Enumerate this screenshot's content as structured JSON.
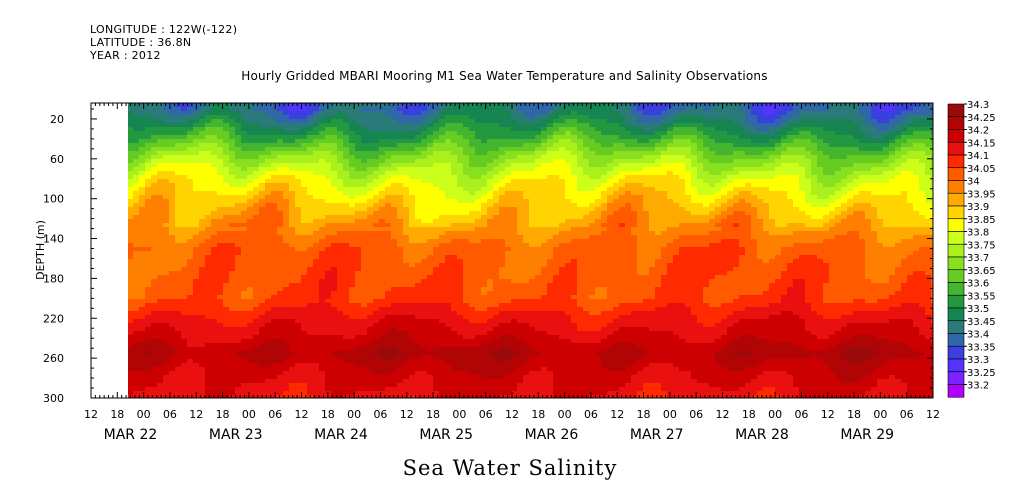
{
  "header": {
    "longitude": "LONGITUDE : 122W(-122)",
    "latitude": "LATITUDE : 36.8N",
    "year": "YEAR : 2012"
  },
  "chart_data": {
    "type": "heatmap",
    "title": "Hourly Gridded MBARI Mooring M1 Sea Water Temperature and Salinity Observations",
    "xlabel": "Sea Water Salinity",
    "ylabel": "DEPTH (m)",
    "y_ticks": [
      20,
      60,
      100,
      140,
      180,
      220,
      260,
      300
    ],
    "ylim": [
      300,
      4
    ],
    "x_hour_ticks": [
      "12",
      "18",
      "00",
      "06",
      "12",
      "18",
      "00",
      "06",
      "12",
      "18",
      "00",
      "06",
      "12",
      "18",
      "00",
      "06",
      "12",
      "18",
      "00",
      "06",
      "12",
      "18",
      "00",
      "06",
      "12",
      "18",
      "00",
      "06",
      "12",
      "18",
      "00",
      "06",
      "12"
    ],
    "x_date_labels": [
      "MAR 22",
      "MAR 23",
      "MAR 24",
      "MAR 25",
      "MAR 26",
      "MAR 27",
      "MAR 28",
      "MAR 29"
    ],
    "x_range": [
      "MAR 22 12:00",
      "MAR 29 12:00"
    ],
    "legend_placement": "right",
    "legend_levels": [
      "34.3",
      "34.25",
      "34.2",
      "34.15",
      "34.1",
      "34.05",
      "34",
      "33.95",
      "33.9",
      "33.85",
      "33.8",
      "33.75",
      "33.7",
      "33.65",
      "33.6",
      "33.55",
      "33.5",
      "33.45",
      "33.4",
      "33.35",
      "33.3",
      "33.25",
      "33.2"
    ],
    "legend_colors": [
      "#9b0a0a",
      "#b10505",
      "#cc0000",
      "#ea1010",
      "#ff2a00",
      "#ff5a00",
      "#ff8000",
      "#ffaa00",
      "#ffd400",
      "#ffff00",
      "#ccff1a",
      "#aaf01c",
      "#88e020",
      "#66cc22",
      "#44b52e",
      "#229940",
      "#168552",
      "#2a7a7a",
      "#3066aa",
      "#3a40dd",
      "#5533ff",
      "#7a22ff",
      "#b000ff"
    ],
    "profile": [
      {
        "depth": 10,
        "value": 33.45
      },
      {
        "depth": 20,
        "value": 33.5
      },
      {
        "depth": 40,
        "value": 33.62
      },
      {
        "depth": 60,
        "value": 33.75
      },
      {
        "depth": 80,
        "value": 33.85
      },
      {
        "depth": 100,
        "value": 33.92
      },
      {
        "depth": 120,
        "value": 33.98
      },
      {
        "depth": 150,
        "value": 34.07
      },
      {
        "depth": 200,
        "value": 34.1
      },
      {
        "depth": 220,
        "value": 34.17
      },
      {
        "depth": 240,
        "value": 34.22
      },
      {
        "depth": 255,
        "value": 34.27
      },
      {
        "depth": 275,
        "value": 34.22
      },
      {
        "depth": 300,
        "value": 34.18
      }
    ],
    "missing_data": "white region from MAR 22 12:00 to MAR 22 18:00"
  }
}
